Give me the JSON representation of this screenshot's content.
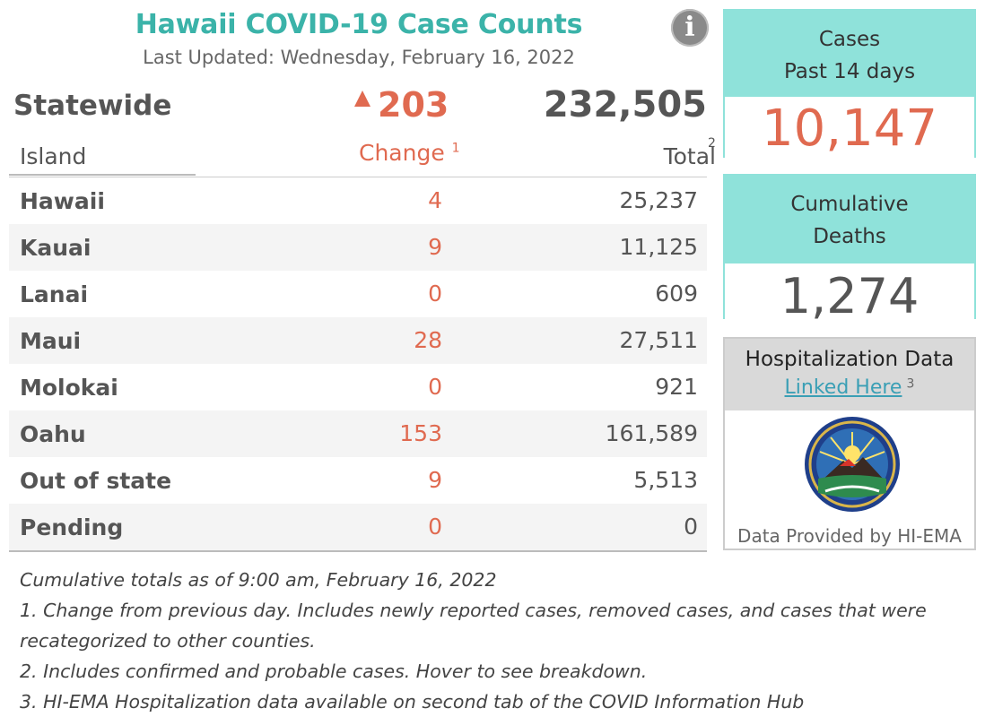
{
  "header": {
    "title": "Hawaii COVID-19 Case Counts",
    "last_updated": "Last Updated: Wednesday, February 16, 2022",
    "info_icon": "info-icon"
  },
  "statewide": {
    "label": "Statewide",
    "change": "203",
    "total": "232,505"
  },
  "table": {
    "col_island": "Island",
    "col_change": "Change",
    "col_change_note": "1",
    "col_total": "Total",
    "col_total_note": "2",
    "rows": [
      {
        "island": "Hawaii",
        "change": "4",
        "total": "25,237"
      },
      {
        "island": "Kauai",
        "change": "9",
        "total": "11,125"
      },
      {
        "island": "Lanai",
        "change": "0",
        "total": "609"
      },
      {
        "island": "Maui",
        "change": "28",
        "total": "27,511"
      },
      {
        "island": "Molokai",
        "change": "0",
        "total": "921"
      },
      {
        "island": "Oahu",
        "change": "153",
        "total": "161,589"
      },
      {
        "island": "Out of state",
        "change": "9",
        "total": "5,513"
      },
      {
        "island": "Pending",
        "change": "0",
        "total": "0"
      }
    ]
  },
  "cases_card": {
    "line1": "Cases",
    "line2": "Past 14 days",
    "value": "10,147"
  },
  "deaths_card": {
    "line1": "Cumulative",
    "line2": "Deaths",
    "value": "1,274"
  },
  "hospitalization": {
    "title": "Hospitalization Data",
    "link": "Linked Here",
    "link_note": "3",
    "footer": "Data Provided by HI-EMA",
    "seal_icon": "hi-ema-seal-icon"
  },
  "notes": [
    "Cumulative totals as of 9:00 am, February 16, 2022",
    "1. Change from previous day. Includes newly reported cases, removed cases, and cases that were",
    "recategorized to other counties.",
    "2. Includes confirmed and probable cases. Hover to see breakdown.",
    "3. HI-EMA Hospitalization data available on second tab of the COVID Information Hub"
  ],
  "colors": {
    "teal_title": "#3bb3a9",
    "card_teal": "#8fe2da",
    "change_orange": "#e06a50",
    "link_blue": "#3a9fb5"
  }
}
